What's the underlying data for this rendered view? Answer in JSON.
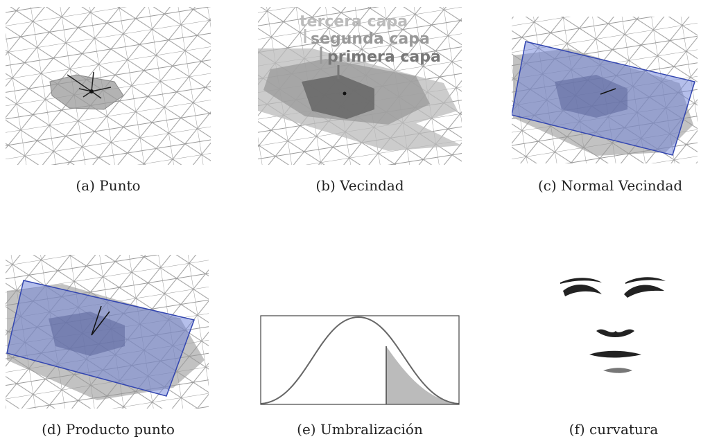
{
  "figure": {
    "panels": [
      {
        "caption": "(a) Punto"
      },
      {
        "caption": "(b) Vecindad"
      },
      {
        "caption": "(c) Normal Vecindad"
      },
      {
        "caption": "(d) Producto punto"
      },
      {
        "caption": "(e) Umbralización"
      },
      {
        "caption": "(f) curvatura"
      }
    ],
    "layers": [
      "tercera capa",
      "segunda capa",
      "primera capa"
    ]
  }
}
